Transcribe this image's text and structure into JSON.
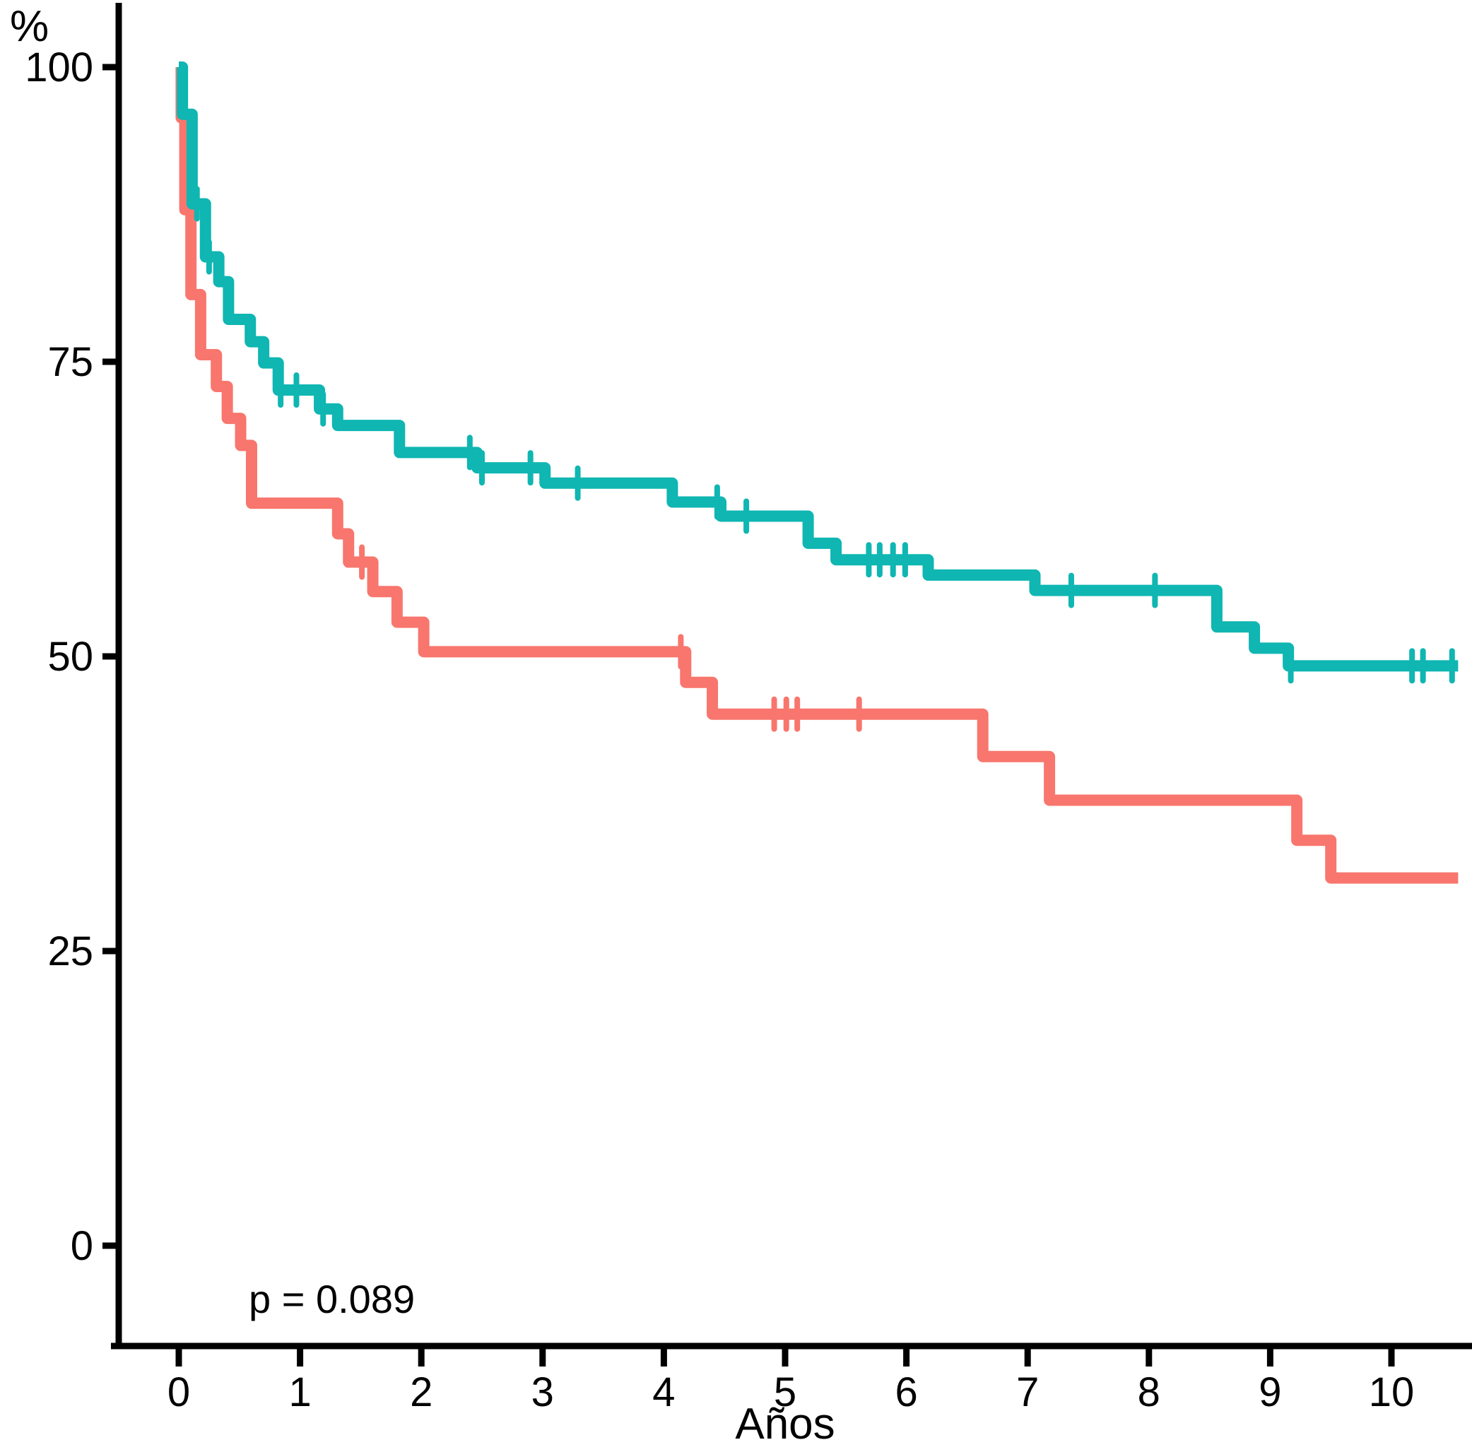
{
  "background_color": "#FFFFFF",
  "axis_color": "#000000",
  "chart_data": {
    "type": "line",
    "variant": "kaplan-meier-step",
    "title": "",
    "xlabel": "Años",
    "ylabel": "%",
    "annotation": {
      "text": "p = 0.089"
    },
    "x_axis": {
      "ticks": [
        0,
        1,
        2,
        3,
        4,
        5,
        6,
        7,
        8,
        9,
        10
      ],
      "range": [
        -0.5,
        10.66
      ],
      "label": "Años"
    },
    "y_axis": {
      "ticks": [
        0,
        25,
        50,
        75,
        100
      ],
      "range": [
        0,
        100
      ],
      "label": "%"
    },
    "grid": "off",
    "legend": "none",
    "series": [
      {
        "name": "red",
        "color": "#F8766D",
        "points": [
          [
            0,
            100
          ],
          [
            0.02,
            95.7
          ],
          [
            0.05,
            87.9
          ],
          [
            0.1,
            80.7
          ],
          [
            0.18,
            75.6
          ],
          [
            0.31,
            72.9
          ],
          [
            0.4,
            70.2
          ],
          [
            0.51,
            67.9
          ],
          [
            0.6,
            63.0
          ],
          [
            1.31,
            60.4
          ],
          [
            1.4,
            58.0
          ],
          [
            1.6,
            55.5
          ],
          [
            1.8,
            52.9
          ],
          [
            2.02,
            50.4
          ],
          [
            4.18,
            47.8
          ],
          [
            4.4,
            45.1
          ],
          [
            6.63,
            41.5
          ],
          [
            7.18,
            37.8
          ],
          [
            9.22,
            34.4
          ],
          [
            9.5,
            31.2
          ]
        ],
        "end_time": 10.55,
        "censor_times": [
          0.09,
          1.51,
          4.14,
          4.91,
          5.01,
          5.1,
          5.61
        ]
      },
      {
        "name": "teal",
        "color": "#0FB6B2",
        "points": [
          [
            0,
            100
          ],
          [
            0.03,
            96.0
          ],
          [
            0.11,
            88.4
          ],
          [
            0.22,
            83.9
          ],
          [
            0.33,
            81.8
          ],
          [
            0.41,
            78.6
          ],
          [
            0.59,
            76.7
          ],
          [
            0.7,
            74.9
          ],
          [
            0.82,
            72.6
          ],
          [
            1.16,
            71.0
          ],
          [
            1.31,
            69.6
          ],
          [
            1.82,
            67.3
          ],
          [
            2.46,
            66.0
          ],
          [
            3.02,
            64.7
          ],
          [
            4.07,
            63.1
          ],
          [
            4.47,
            61.9
          ],
          [
            5.19,
            59.6
          ],
          [
            5.42,
            58.2
          ],
          [
            6.18,
            56.9
          ],
          [
            7.06,
            55.6
          ],
          [
            8.56,
            52.5
          ],
          [
            8.87,
            50.7
          ],
          [
            9.15,
            49.2
          ]
        ],
        "end_time": 10.55,
        "censor_times": [
          0.15,
          0.25,
          0.84,
          0.97,
          1.19,
          2.4,
          2.5,
          2.9,
          3.29,
          4.44,
          4.68,
          5.69,
          5.78,
          5.89,
          5.99,
          7.36,
          8.05,
          9.17,
          10.17,
          10.26,
          10.5
        ]
      }
    ]
  }
}
